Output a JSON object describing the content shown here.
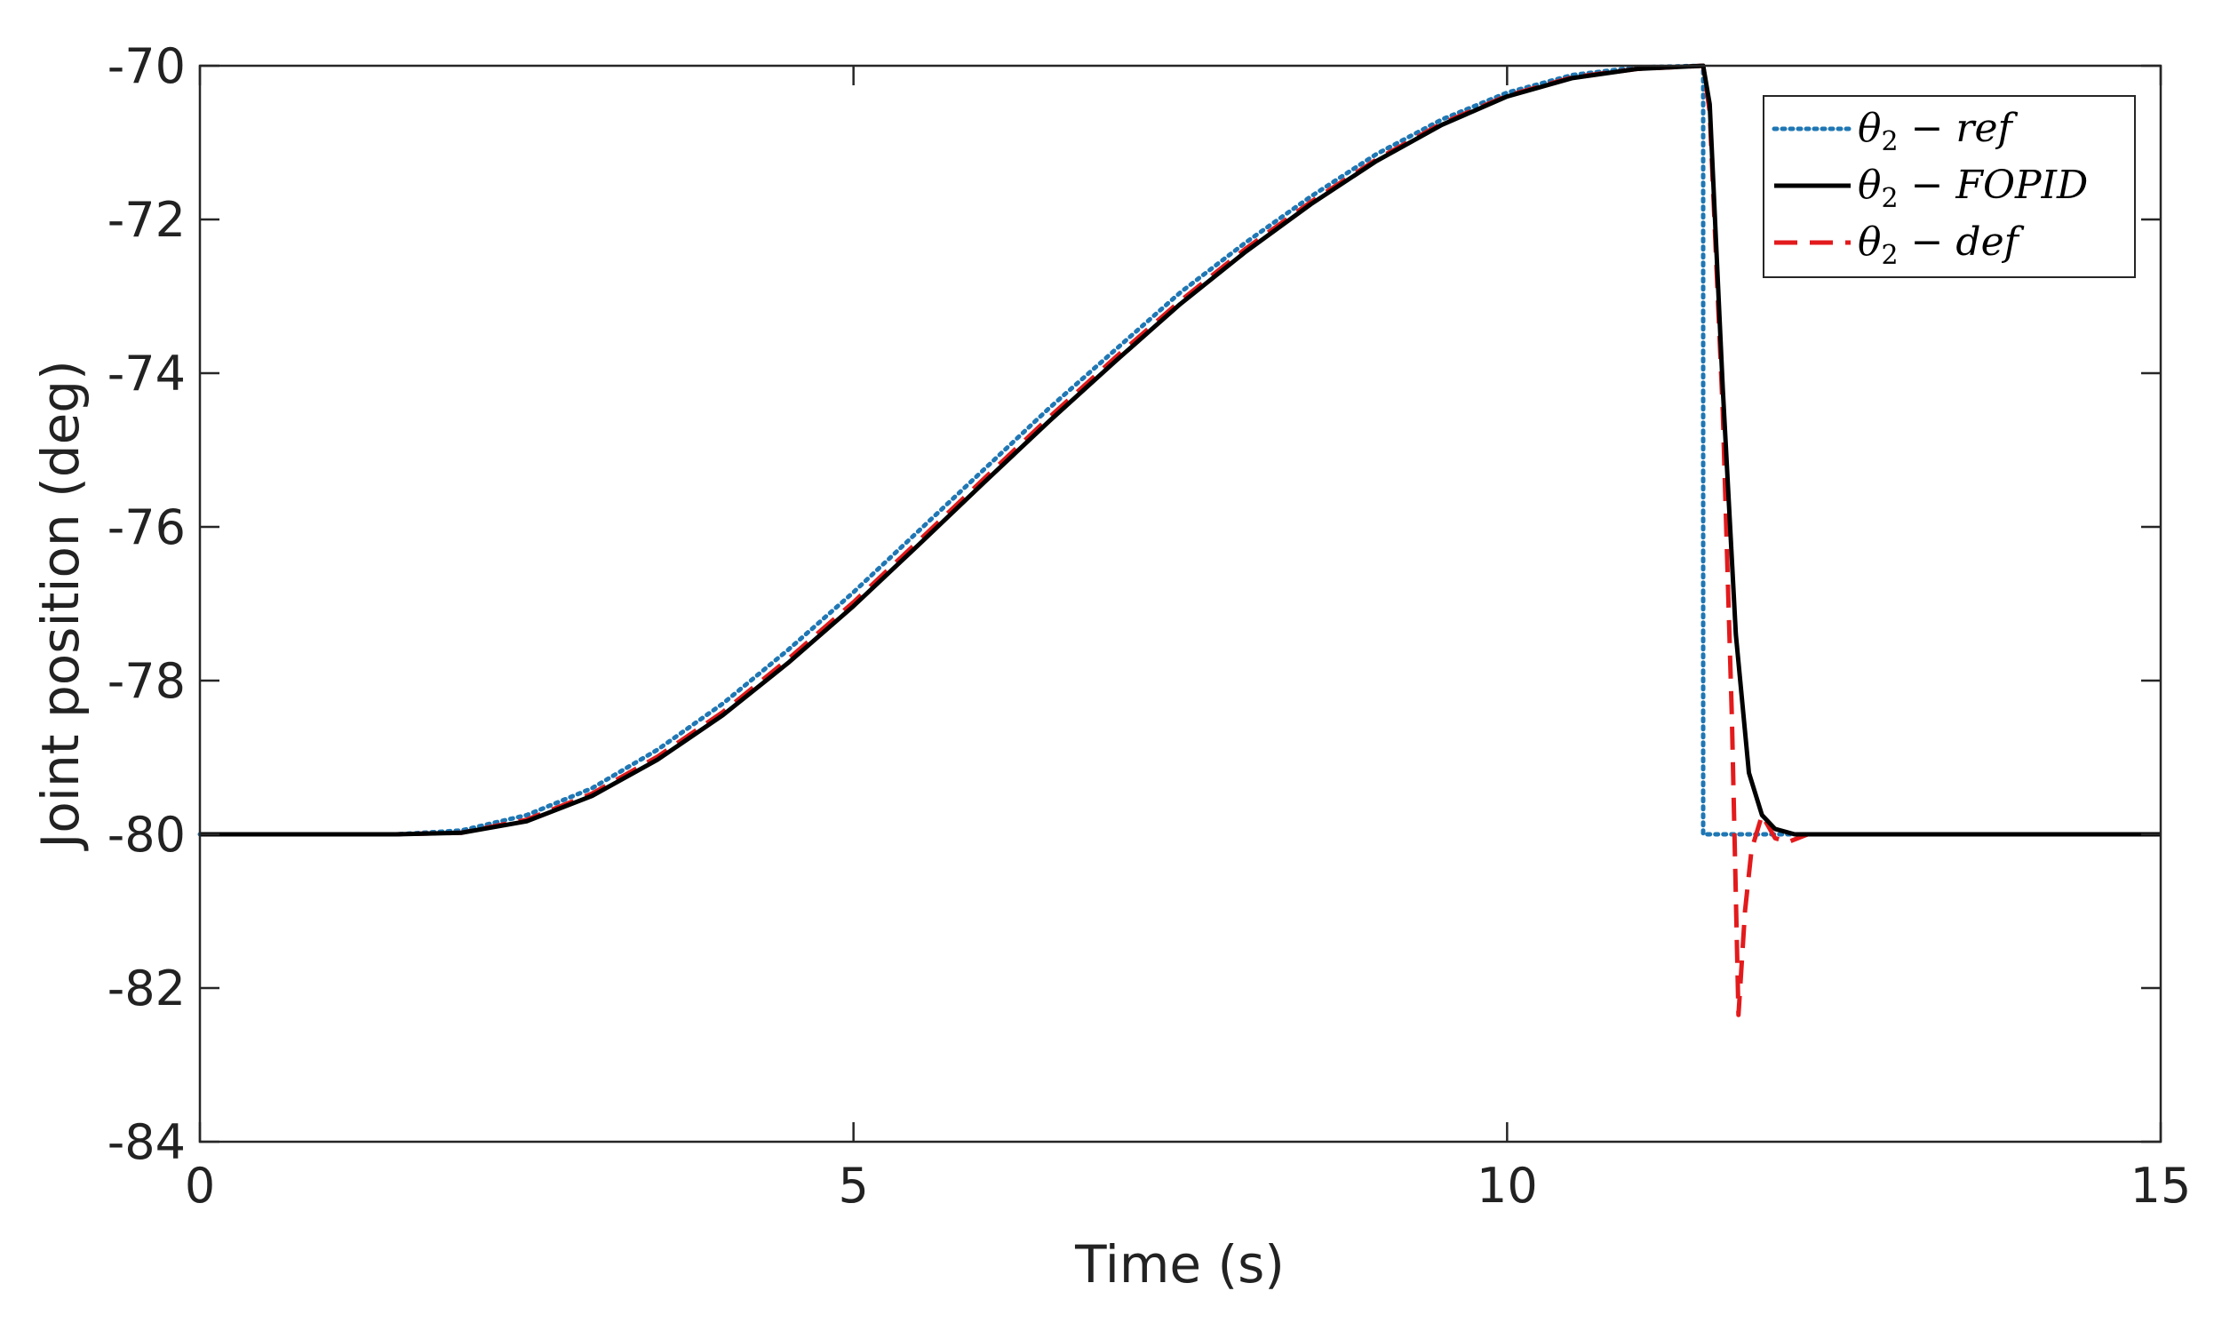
{
  "chart_data": {
    "type": "line",
    "title": "",
    "xlabel": "Time (s)",
    "ylabel": "Joint position (deg)",
    "xlim": [
      0,
      15
    ],
    "ylim": [
      -84,
      -70
    ],
    "x_ticks": [
      0,
      5,
      10,
      15
    ],
    "y_ticks": [
      -70,
      -72,
      -74,
      -76,
      -78,
      -80,
      -82,
      -84
    ],
    "x_tick_labels": [
      "0",
      "5",
      "10",
      "15"
    ],
    "y_tick_labels": [
      "-70",
      "-72",
      "-74",
      "-76",
      "-78",
      "-80",
      "-82",
      "-84"
    ],
    "grid": false,
    "legend_position": "top-right",
    "series": [
      {
        "name": "θ2 − ref",
        "legend_symbol": "θ",
        "legend_subscript": "2",
        "legend_rest": " − ref",
        "color": "#1f77b4",
        "style": "dotted",
        "x": [
          0,
          1.5,
          2.0,
          2.5,
          3.0,
          3.5,
          4.0,
          4.5,
          5.0,
          5.5,
          6.0,
          6.5,
          7.0,
          7.5,
          8.0,
          8.5,
          9.0,
          9.5,
          10.0,
          10.5,
          11.0,
          11.5,
          11.5,
          12.0,
          15.0
        ],
        "y": [
          -80.0,
          -80.0,
          -79.95,
          -79.75,
          -79.4,
          -78.9,
          -78.3,
          -77.6,
          -76.85,
          -76.05,
          -75.25,
          -74.45,
          -73.7,
          -72.95,
          -72.3,
          -71.7,
          -71.15,
          -70.7,
          -70.35,
          -70.12,
          -70.02,
          -70.0,
          -80.0,
          -80.0,
          -80.0
        ]
      },
      {
        "name": "θ2 − FOPID",
        "legend_symbol": "θ",
        "legend_subscript": "2",
        "legend_rest": " − FOPID",
        "color": "#000000",
        "style": "solid",
        "x": [
          0,
          1.5,
          2.0,
          2.5,
          3.0,
          3.5,
          4.0,
          4.5,
          5.0,
          5.5,
          6.0,
          6.5,
          7.0,
          7.5,
          8.0,
          8.5,
          9.0,
          9.5,
          10.0,
          10.5,
          11.0,
          11.5,
          11.55,
          11.65,
          11.75,
          11.85,
          11.95,
          12.05,
          12.2,
          12.5,
          15.0
        ],
        "y": [
          -80.0,
          -80.0,
          -79.98,
          -79.83,
          -79.5,
          -79.03,
          -78.45,
          -77.77,
          -77.03,
          -76.23,
          -75.42,
          -74.62,
          -73.85,
          -73.1,
          -72.42,
          -71.8,
          -71.24,
          -70.77,
          -70.4,
          -70.16,
          -70.04,
          -70.0,
          -70.5,
          -74.2,
          -77.4,
          -79.2,
          -79.75,
          -79.93,
          -80.0,
          -80.0,
          -80.0
        ]
      },
      {
        "name": "θ2 − def",
        "legend_symbol": "θ",
        "legend_subscript": "2",
        "legend_rest": " − def",
        "color": "#e31a1c",
        "style": "dashed",
        "x": [
          0,
          1.5,
          2.0,
          2.5,
          3.0,
          3.5,
          4.0,
          4.5,
          5.0,
          5.5,
          6.0,
          6.5,
          7.0,
          7.5,
          8.0,
          8.5,
          9.0,
          9.5,
          10.0,
          10.5,
          11.0,
          11.5,
          11.55,
          11.65,
          11.72,
          11.77,
          11.82,
          11.87,
          11.95,
          12.05,
          12.15,
          12.3,
          15.0
        ],
        "y": [
          -80.0,
          -80.0,
          -79.98,
          -79.81,
          -79.47,
          -78.99,
          -78.41,
          -77.72,
          -76.98,
          -76.18,
          -75.37,
          -74.57,
          -73.8,
          -73.06,
          -72.38,
          -71.77,
          -71.22,
          -70.75,
          -70.39,
          -70.15,
          -70.04,
          -70.0,
          -70.6,
          -74.5,
          -78.5,
          -82.35,
          -81.0,
          -80.2,
          -79.75,
          -80.05,
          -80.1,
          -80.0,
          -80.0
        ]
      }
    ]
  }
}
